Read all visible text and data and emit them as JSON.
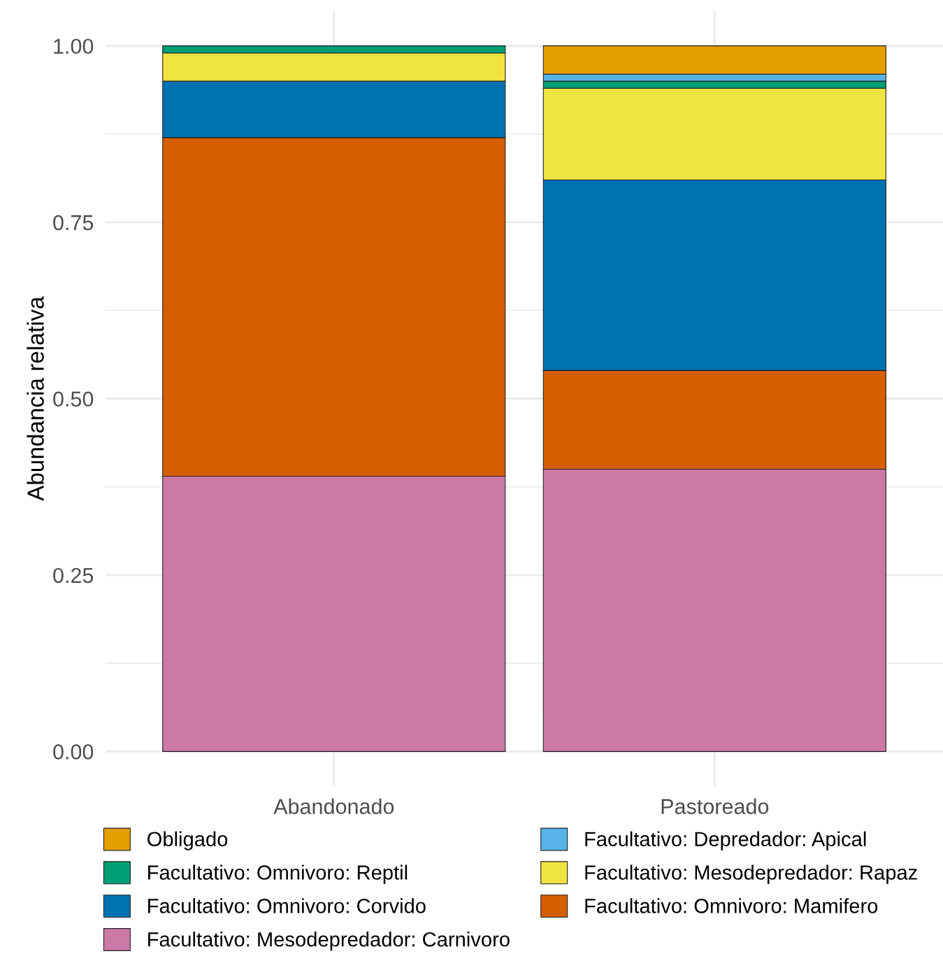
{
  "chart_data": {
    "type": "bar",
    "stacked": true,
    "ylabel": "Abundancia relativa",
    "categories": [
      "Abandonado",
      "Pastoreado"
    ],
    "series": [
      {
        "name": "Facultativo: Mesodepredador: Carnivoro",
        "color": "#cc79a7",
        "values": [
          0.39,
          0.4
        ]
      },
      {
        "name": "Facultativo: Omnivoro: Mamifero",
        "color": "#d55e00",
        "values": [
          0.48,
          0.14
        ]
      },
      {
        "name": "Facultativo: Omnivoro: Corvido",
        "color": "#0072b2",
        "values": [
          0.08,
          0.27
        ]
      },
      {
        "name": "Facultativo: Mesodepredador: Rapaz",
        "color": "#f0e442",
        "values": [
          0.04,
          0.13
        ]
      },
      {
        "name": "Facultativo: Omnivoro: Reptil",
        "color": "#009e73",
        "values": [
          0.01,
          0.01
        ]
      },
      {
        "name": "Facultativo: Depredador: Apical",
        "color": "#56b4e9",
        "values": [
          0,
          0.01
        ]
      },
      {
        "name": "Obligado",
        "color": "#e69f00",
        "values": [
          0,
          0.04
        ]
      }
    ],
    "ylim": [
      -0.05,
      1.05
    ],
    "yticks": [
      {
        "value": 0,
        "label": "0.00"
      },
      {
        "value": 0.25,
        "label": "0.25"
      },
      {
        "value": 0.5,
        "label": "0.50"
      },
      {
        "value": 0.75,
        "label": "0.75"
      },
      {
        "value": 1,
        "label": "1.00"
      }
    ],
    "grid": true,
    "legend": "bottom"
  }
}
